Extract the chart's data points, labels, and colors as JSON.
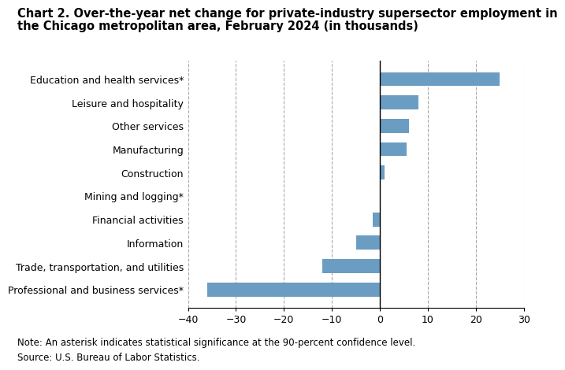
{
  "title_line1": "Chart 2. Over-the-year net change for private-industry supersector employment in",
  "title_line2": "the Chicago metropolitan area, February 2024 (in thousands)",
  "categories": [
    "Professional and business services*",
    "Trade, transportation, and utilities",
    "Information",
    "Financial activities",
    "Mining and logging*",
    "Construction",
    "Manufacturing",
    "Other services",
    "Leisure and hospitality",
    "Education and health services*"
  ],
  "values": [
    -36.0,
    -12.0,
    -5.0,
    -1.5,
    0.2,
    1.0,
    5.5,
    6.0,
    8.0,
    25.0
  ],
  "bar_color": "#6b9dc2",
  "xlim": [
    -40,
    30
  ],
  "xticks": [
    -40,
    -30,
    -20,
    -10,
    0,
    10,
    20,
    30
  ],
  "note": "Note: An asterisk indicates statistical significance at the 90-percent confidence level.",
  "source": "Source: U.S. Bureau of Labor Statistics.",
  "background_color": "#ffffff",
  "grid_color": "#aaaaaa",
  "title_fontsize": 10.5,
  "tick_fontsize": 9,
  "note_fontsize": 8.5
}
